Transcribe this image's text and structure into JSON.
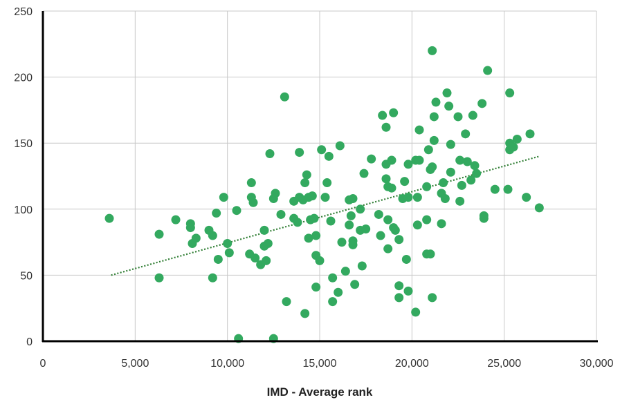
{
  "chart_data": {
    "type": "scatter",
    "title": "",
    "xlabel": "IMD - Average rank",
    "ylabel": "",
    "xlim": [
      0,
      30000
    ],
    "ylim": [
      0,
      250
    ],
    "x_ticks": [
      0,
      5000,
      10000,
      15000,
      20000,
      25000,
      30000
    ],
    "x_tick_labels": [
      "0",
      "5,000",
      "10,000",
      "15,000",
      "20,000",
      "25,000",
      "30,000"
    ],
    "y_ticks": [
      0,
      50,
      100,
      150,
      200,
      250
    ],
    "y_tick_labels": [
      "0",
      "50",
      "100",
      "150",
      "200",
      "250"
    ],
    "grid": true,
    "legend": "none",
    "colors": {
      "points": "#33a95f",
      "trendline": "#2e7d32",
      "grid": "#c8c8c8",
      "axis": "#000000"
    },
    "trendline": {
      "style": "dotted",
      "x": [
        3700,
        26900
      ],
      "y": [
        50,
        140
      ]
    },
    "series": [
      {
        "points": [
          [
            3600,
            93
          ],
          [
            6300,
            81
          ],
          [
            6300,
            48
          ],
          [
            7200,
            92
          ],
          [
            8000,
            89
          ],
          [
            8000,
            86
          ],
          [
            8100,
            74
          ],
          [
            8300,
            78
          ],
          [
            9000,
            84
          ],
          [
            9200,
            80
          ],
          [
            9200,
            48
          ],
          [
            9400,
            97
          ],
          [
            9500,
            62
          ],
          [
            9800,
            109
          ],
          [
            10000,
            74
          ],
          [
            10100,
            67
          ],
          [
            10500,
            99
          ],
          [
            10600,
            2
          ],
          [
            11200,
            66
          ],
          [
            11300,
            120
          ],
          [
            11300,
            109
          ],
          [
            11400,
            105
          ],
          [
            11500,
            63
          ],
          [
            11800,
            58
          ],
          [
            12000,
            84
          ],
          [
            12000,
            72
          ],
          [
            12100,
            61
          ],
          [
            12200,
            74
          ],
          [
            12300,
            142
          ],
          [
            12500,
            108
          ],
          [
            12500,
            2
          ],
          [
            12600,
            112
          ],
          [
            12900,
            96
          ],
          [
            13100,
            185
          ],
          [
            13200,
            30
          ],
          [
            13600,
            106
          ],
          [
            13600,
            93
          ],
          [
            13800,
            90
          ],
          [
            13900,
            143
          ],
          [
            13900,
            109
          ],
          [
            14100,
            107
          ],
          [
            14200,
            120
          ],
          [
            14200,
            21
          ],
          [
            14300,
            126
          ],
          [
            14400,
            109
          ],
          [
            14400,
            78
          ],
          [
            14500,
            92
          ],
          [
            14600,
            110
          ],
          [
            14700,
            93
          ],
          [
            14800,
            80
          ],
          [
            14800,
            65
          ],
          [
            14800,
            41
          ],
          [
            15000,
            61
          ],
          [
            15100,
            145
          ],
          [
            15300,
            109
          ],
          [
            15400,
            120
          ],
          [
            15500,
            140
          ],
          [
            15600,
            91
          ],
          [
            15700,
            48
          ],
          [
            15700,
            30
          ],
          [
            16000,
            37
          ],
          [
            16100,
            148
          ],
          [
            16200,
            75
          ],
          [
            16400,
            53
          ],
          [
            16600,
            107
          ],
          [
            16600,
            88
          ],
          [
            16700,
            95
          ],
          [
            16800,
            108
          ],
          [
            16800,
            76
          ],
          [
            16800,
            73
          ],
          [
            16900,
            43
          ],
          [
            17200,
            100
          ],
          [
            17200,
            84
          ],
          [
            17300,
            57
          ],
          [
            17400,
            127
          ],
          [
            17500,
            85
          ],
          [
            17800,
            138
          ],
          [
            18200,
            96
          ],
          [
            18300,
            80
          ],
          [
            18400,
            171
          ],
          [
            18600,
            162
          ],
          [
            18600,
            123
          ],
          [
            18600,
            134
          ],
          [
            18700,
            117
          ],
          [
            18700,
            92
          ],
          [
            18700,
            70
          ],
          [
            18900,
            137
          ],
          [
            18900,
            116
          ],
          [
            19000,
            173
          ],
          [
            19000,
            86
          ],
          [
            19100,
            84
          ],
          [
            19300,
            77
          ],
          [
            19300,
            42
          ],
          [
            19300,
            33
          ],
          [
            19500,
            108
          ],
          [
            19600,
            121
          ],
          [
            19700,
            62
          ],
          [
            19800,
            134
          ],
          [
            19800,
            109
          ],
          [
            19800,
            38
          ],
          [
            20200,
            137
          ],
          [
            20200,
            22
          ],
          [
            20300,
            109
          ],
          [
            20300,
            88
          ],
          [
            20400,
            160
          ],
          [
            20400,
            137
          ],
          [
            20800,
            117
          ],
          [
            20800,
            92
          ],
          [
            20800,
            66
          ],
          [
            20900,
            145
          ],
          [
            21000,
            130
          ],
          [
            21000,
            66
          ],
          [
            21100,
            220
          ],
          [
            21100,
            132
          ],
          [
            21100,
            33
          ],
          [
            21200,
            170
          ],
          [
            21200,
            152
          ],
          [
            21300,
            181
          ],
          [
            21600,
            89
          ],
          [
            21600,
            112
          ],
          [
            21700,
            120
          ],
          [
            21800,
            108
          ],
          [
            21900,
            188
          ],
          [
            22000,
            178
          ],
          [
            22100,
            128
          ],
          [
            22100,
            149
          ],
          [
            22500,
            170
          ],
          [
            22600,
            137
          ],
          [
            22600,
            106
          ],
          [
            22700,
            118
          ],
          [
            22900,
            157
          ],
          [
            23000,
            136
          ],
          [
            23200,
            122
          ],
          [
            23300,
            171
          ],
          [
            23400,
            133
          ],
          [
            23500,
            127
          ],
          [
            23800,
            180
          ],
          [
            23900,
            95
          ],
          [
            23900,
            93
          ],
          [
            24100,
            205
          ],
          [
            24500,
            115
          ],
          [
            25200,
            115
          ],
          [
            25300,
            188
          ],
          [
            25300,
            150
          ],
          [
            25300,
            145
          ],
          [
            25500,
            147
          ],
          [
            25700,
            153
          ],
          [
            26200,
            109
          ],
          [
            26400,
            157
          ],
          [
            26900,
            101
          ]
        ]
      }
    ]
  }
}
